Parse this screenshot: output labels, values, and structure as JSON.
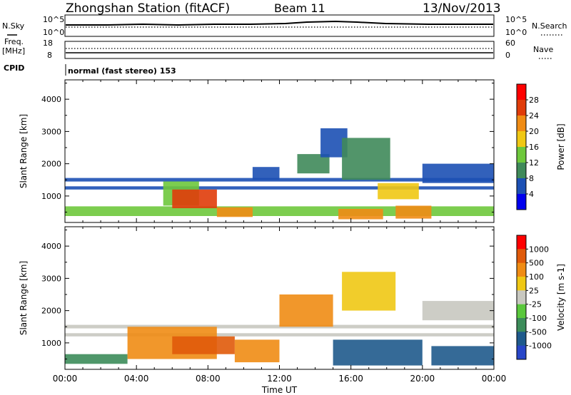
{
  "header": {
    "station": "Zhongshan Station (fitACF)",
    "beam": "Beam 11",
    "date": "13/Nov/2013"
  },
  "status_panels": {
    "nsky_label": "N.Sky",
    "nsearch_label": "N.Search",
    "log_ticks": [
      "10^5",
      "10^0"
    ],
    "freq_label": "Freq.",
    "freq_unit": "[MHz]",
    "freq_ticks": [
      "18",
      "8"
    ],
    "nave_label": "Nave",
    "nave_ticks": [
      "60",
      "0"
    ],
    "cpid_label": "CPID",
    "cpid_value": "normal (fast stereo) 153"
  },
  "chart_data": [
    {
      "type": "heatmap",
      "name": "power",
      "ylabel": "Slant Range [km]",
      "xlabel": "",
      "x_ticks": [
        "00:00",
        "04:00",
        "08:00",
        "12:00",
        "16:00",
        "20:00",
        "00:00"
      ],
      "x_tick_hours": [
        0,
        4,
        8,
        12,
        16,
        20,
        24
      ],
      "xlim": [
        0,
        24
      ],
      "y_ticks": [
        1000,
        2000,
        3000,
        4000
      ],
      "ylim": [
        180,
        4600
      ],
      "colorbar_label": "Power [dB]",
      "colorbar_ticks": [
        "28",
        "24",
        "20",
        "16",
        "12",
        "8",
        "4"
      ],
      "colorbar_colors": [
        "#0000ee",
        "#1c50b4",
        "#3f8a5a",
        "#6ec83c",
        "#f0c814",
        "#f08c14",
        "#e03c0a",
        "#ff0000"
      ],
      "regions": [
        {
          "t0": 0.0,
          "t1": 24.0,
          "r0": 1450,
          "r1": 1560,
          "level": 1
        },
        {
          "t0": 0.0,
          "t1": 24.0,
          "r0": 1200,
          "r1": 1300,
          "level": 1
        },
        {
          "t0": 0.0,
          "t1": 24.0,
          "r0": 380,
          "r1": 680,
          "level": 3
        },
        {
          "t0": 5.5,
          "t1": 7.5,
          "r0": 700,
          "r1": 1450,
          "level": 3
        },
        {
          "t0": 6.0,
          "t1": 8.5,
          "r0": 620,
          "r1": 1200,
          "level": 6
        },
        {
          "t0": 8.5,
          "t1": 10.5,
          "r0": 350,
          "r1": 650,
          "level": 5
        },
        {
          "t0": 10.5,
          "t1": 12.0,
          "r0": 1500,
          "r1": 1900,
          "level": 1
        },
        {
          "t0": 13.0,
          "t1": 14.8,
          "r0": 1700,
          "r1": 2300,
          "level": 2
        },
        {
          "t0": 14.3,
          "t1": 15.8,
          "r0": 2200,
          "r1": 3100,
          "level": 1
        },
        {
          "t0": 15.5,
          "t1": 18.2,
          "r0": 1500,
          "r1": 2800,
          "level": 2
        },
        {
          "t0": 15.3,
          "t1": 17.8,
          "r0": 280,
          "r1": 600,
          "level": 5
        },
        {
          "t0": 17.5,
          "t1": 19.8,
          "r0": 900,
          "r1": 1400,
          "level": 4
        },
        {
          "t0": 18.5,
          "t1": 20.5,
          "r0": 300,
          "r1": 700,
          "level": 5
        },
        {
          "t0": 20.0,
          "t1": 24.0,
          "r0": 1400,
          "r1": 2000,
          "level": 1
        }
      ]
    },
    {
      "type": "heatmap",
      "name": "velocity",
      "ylabel": "Slant Range [km]",
      "xlabel": "Time UT",
      "x_ticks": [
        "00:00",
        "04:00",
        "08:00",
        "12:00",
        "16:00",
        "20:00",
        "00:00"
      ],
      "x_tick_hours": [
        0,
        4,
        8,
        12,
        16,
        20,
        24
      ],
      "xlim": [
        0,
        24
      ],
      "y_ticks": [
        1000,
        2000,
        3000,
        4000
      ],
      "ylim": [
        180,
        4600
      ],
      "colorbar_label": "Velocity [m s-1]",
      "colorbar_ticks": [
        "1000",
        "500",
        "100",
        "25",
        "-25",
        "-100",
        "-500",
        "-1000"
      ],
      "colorbar_colors": [
        "#2846c8",
        "#1f5a8c",
        "#3c8c5a",
        "#5ac83c",
        "#c8c8c0",
        "#f0c814",
        "#f08c14",
        "#e05a0a",
        "#ff0000"
      ],
      "regions": [
        {
          "t0": 0.0,
          "t1": 24.0,
          "r0": 1450,
          "r1": 1560,
          "level": 4
        },
        {
          "t0": 0.0,
          "t1": 24.0,
          "r0": 1200,
          "r1": 1300,
          "level": 4
        },
        {
          "t0": 0.0,
          "t1": 3.5,
          "r0": 350,
          "r1": 650,
          "level": 2
        },
        {
          "t0": 3.5,
          "t1": 8.5,
          "r0": 500,
          "r1": 1500,
          "level": 6
        },
        {
          "t0": 6.0,
          "t1": 9.5,
          "r0": 650,
          "r1": 1200,
          "level": 7
        },
        {
          "t0": 9.5,
          "t1": 12.0,
          "r0": 400,
          "r1": 1100,
          "level": 6
        },
        {
          "t0": 12.0,
          "t1": 15.0,
          "r0": 1500,
          "r1": 2500,
          "level": 6
        },
        {
          "t0": 15.5,
          "t1": 18.5,
          "r0": 2000,
          "r1": 3200,
          "level": 5
        },
        {
          "t0": 15.0,
          "t1": 20.0,
          "r0": 300,
          "r1": 1100,
          "level": 1
        },
        {
          "t0": 20.0,
          "t1": 24.0,
          "r0": 1700,
          "r1": 2300,
          "level": 4
        },
        {
          "t0": 20.5,
          "t1": 24.0,
          "r0": 300,
          "r1": 900,
          "level": 1
        }
      ]
    }
  ]
}
